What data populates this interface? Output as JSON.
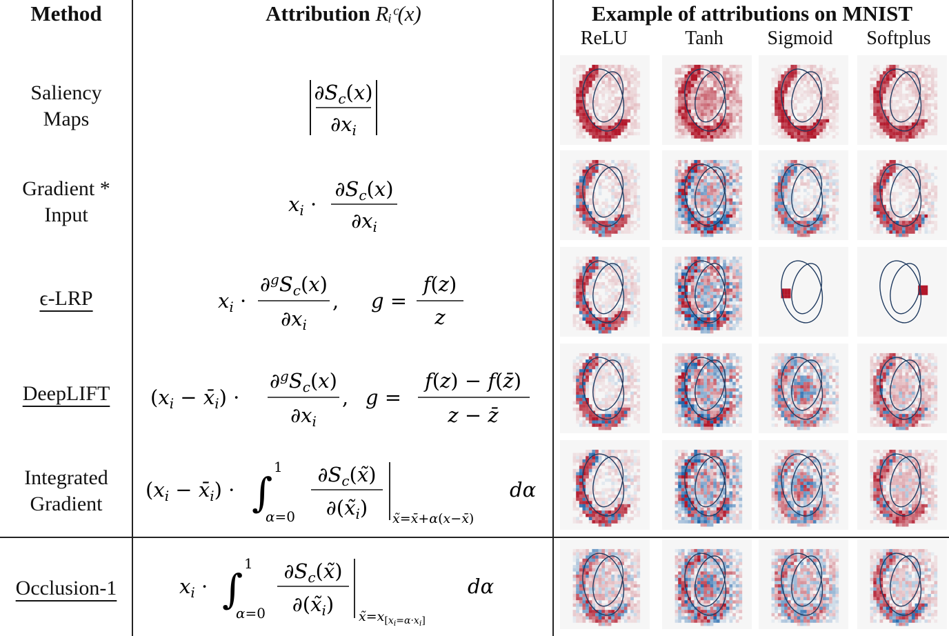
{
  "header": {
    "method": "Method",
    "attribution_word": "Attribution",
    "attribution_symbol": "Rᵢᶜ(x)",
    "example": "Example of attributions on MNIST"
  },
  "activations": [
    "ReLU",
    "Tanh",
    "Sigmoid",
    "Softplus"
  ],
  "rows": [
    {
      "method_line1": "Saliency",
      "method_line2": "Maps",
      "underlined": false,
      "formula": "|∂S_c(x)/∂x_i|"
    },
    {
      "method_line1": "Gradient *",
      "method_line2": "Input",
      "underlined": false,
      "formula": "x_i · ∂S_c(x)/∂x_i"
    },
    {
      "method_line1": "ϵ-LRP",
      "method_line2": "",
      "underlined": true,
      "formula": "x_i · ∂^g S_c(x)/∂x_i, g = f(z)/z"
    },
    {
      "method_line1": "DeepLIFT",
      "method_line2": "",
      "underlined": true,
      "formula": "(x_i − x̄_i) · ∂^g S_c(x)/∂x_i, g = (f(z) − f(z̄))/(z − z̄)"
    },
    {
      "method_line1": "Integrated",
      "method_line2": "Gradient",
      "underlined": false,
      "formula": "(x_i − x̄_i) · ∫_{α=0}^{1} ∂S_c(x̃)/∂(x̃_i) |_{x̃=x̄+α(x−x̄)} dα"
    },
    {
      "method_line1": "Occlusion-1",
      "method_line2": "",
      "underlined": true,
      "formula": "x_i · ∫_{α=0}^{1} ∂S_c(x̃)/∂(x̃_i) |_{x̃=x_[x_i=α·x_i]} dα"
    }
  ],
  "colors": {
    "positive": "#b2182b",
    "negative": "#2166ac",
    "contour": "#1f3a5f",
    "background": "#f6f6f6"
  }
}
